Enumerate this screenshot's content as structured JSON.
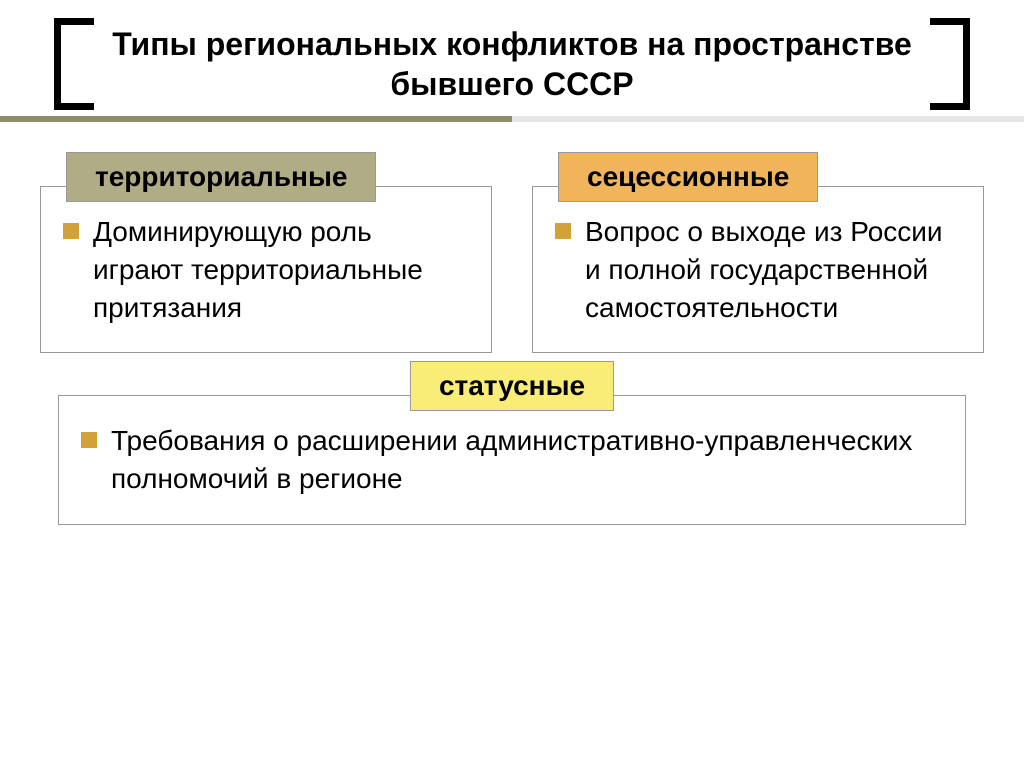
{
  "title": "Типы региональных конфликтов на пространстве бывшего СССР",
  "colors": {
    "tag1_bg": "#b0ac85",
    "tag2_bg": "#f0b55a",
    "tag3_bg": "#f9ed77",
    "bullet": "#d3a13a",
    "underline_left": "#8f8c6c",
    "underline_right": "#e6e6e6"
  },
  "cards": {
    "territorial": {
      "tag": "территориальные",
      "text": "Доминирующую роль играют территориальные притязания"
    },
    "secession": {
      "tag": "сецессионные",
      "text": "Вопрос о выходе из России и полной государственной самостоятельности"
    },
    "status": {
      "tag": "статусные",
      "text": "Требования о расширении административно-управленческих полномочий в регионе"
    }
  }
}
